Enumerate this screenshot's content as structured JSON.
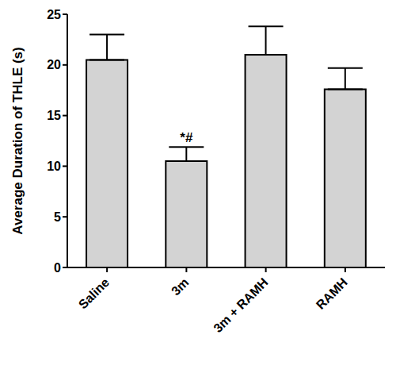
{
  "chart_data": {
    "type": "bar",
    "y_label": "Average Duration of THLE (s)",
    "categories": [
      "Saline",
      "3m",
      "3m + RAMH",
      "RAMH"
    ],
    "values": [
      20.5,
      10.5,
      21,
      17.6
    ],
    "errors": [
      2.5,
      1.4,
      2.8,
      2.1
    ],
    "color": "#d3d3d3",
    "ylim": [
      0,
      25
    ],
    "yticks": [
      0,
      5,
      10,
      15,
      20,
      25
    ],
    "grid": false,
    "annotations": [
      {
        "category": "3m",
        "text": "*#"
      }
    ]
  }
}
